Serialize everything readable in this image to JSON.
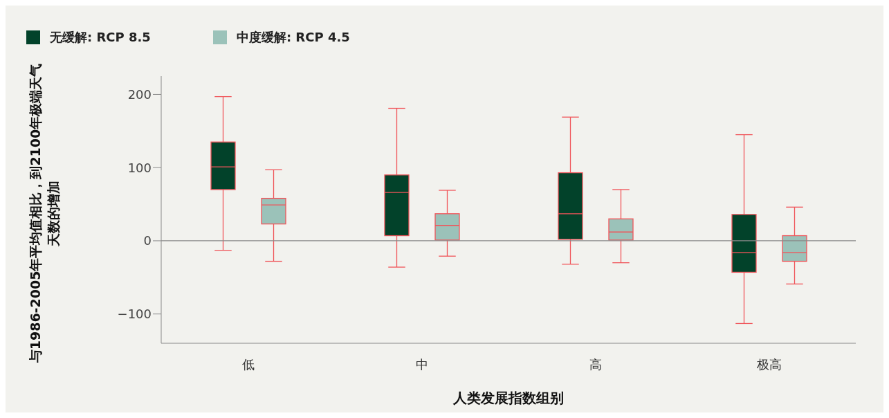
{
  "chart_data": {
    "type": "box",
    "categories": [
      "低",
      "中",
      "高",
      "极高"
    ],
    "xlabel": "人类发展指数组别",
    "ylabel": "与1986-2005年平均值相比，到2100年极端天气天数的增加",
    "ylim": [
      -140,
      225
    ],
    "yticks": [
      -100,
      0,
      100,
      200
    ],
    "grid": false,
    "legend": "top left",
    "ref_lines": [
      {
        "axis": "y",
        "value": 0,
        "color": "#8a8a8a"
      }
    ],
    "series": [
      {
        "name": "无缓解: RCP 8.5",
        "color": "#02422a",
        "boxes": [
          {
            "low": -13,
            "q1": 70,
            "median": 101,
            "q3": 135,
            "high": 197
          },
          {
            "low": -36,
            "q1": 7,
            "median": 66,
            "q3": 90,
            "high": 181
          },
          {
            "low": -32,
            "q1": 2,
            "median": 37,
            "q3": 93,
            "high": 169
          },
          {
            "low": -113,
            "q1": -43,
            "median": -16,
            "q3": 36,
            "high": 145
          }
        ]
      },
      {
        "name": "中度缓解: RCP 4.5",
        "color": "#9bc2b9",
        "boxes": [
          {
            "low": -28,
            "q1": 23,
            "median": 49,
            "q3": 58,
            "high": 97
          },
          {
            "low": -21,
            "q1": 1,
            "median": 21,
            "q3": 37,
            "high": 69
          },
          {
            "low": -30,
            "q1": 1,
            "median": 12,
            "q3": 30,
            "high": 70
          },
          {
            "low": -59,
            "q1": -28,
            "median": -16,
            "q3": 7,
            "high": 46
          }
        ]
      }
    ]
  }
}
